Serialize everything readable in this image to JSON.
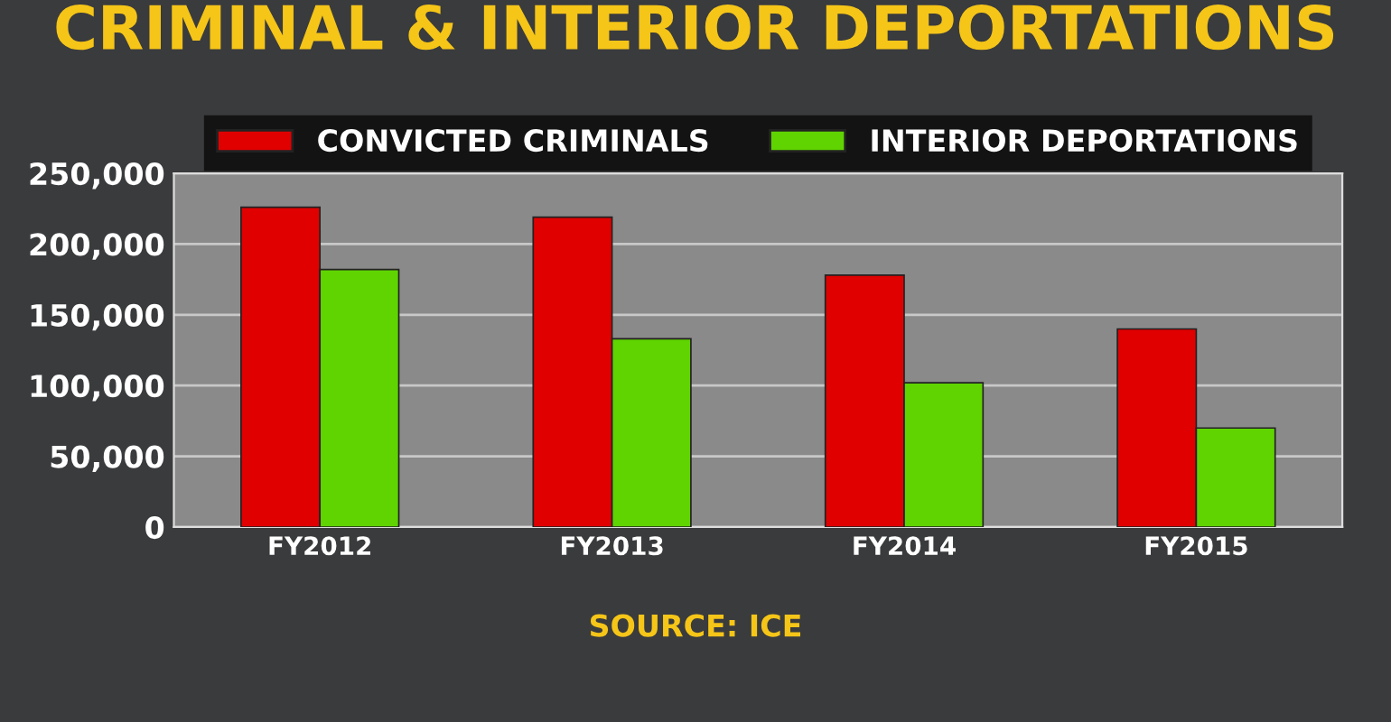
{
  "chart_data": {
    "type": "bar",
    "title": "CRIMINAL & INTERIOR DEPORTATIONS",
    "categories": [
      "FY2012",
      "FY2013",
      "FY2014",
      "FY2015"
    ],
    "series": [
      {
        "name": "CONVICTED CRIMINALS",
        "color": "#e00000",
        "values": [
          226000,
          219000,
          178000,
          140000
        ]
      },
      {
        "name": "INTERIOR DEPORTATIONS",
        "color": "#5fd400",
        "values": [
          182000,
          133000,
          102000,
          70000
        ]
      }
    ],
    "ylim": [
      0,
      250000
    ],
    "yticks": [
      {
        "value": 0,
        "label": "0"
      },
      {
        "value": 50000,
        "label": "50,000"
      },
      {
        "value": 100000,
        "label": "100,000"
      },
      {
        "value": 150000,
        "label": "150,000"
      },
      {
        "value": 200000,
        "label": "200,000"
      },
      {
        "value": 250000,
        "label": "250,000"
      }
    ],
    "grid": "y",
    "legend": "top",
    "annotations": [
      "SOURCE: ICE"
    ]
  }
}
